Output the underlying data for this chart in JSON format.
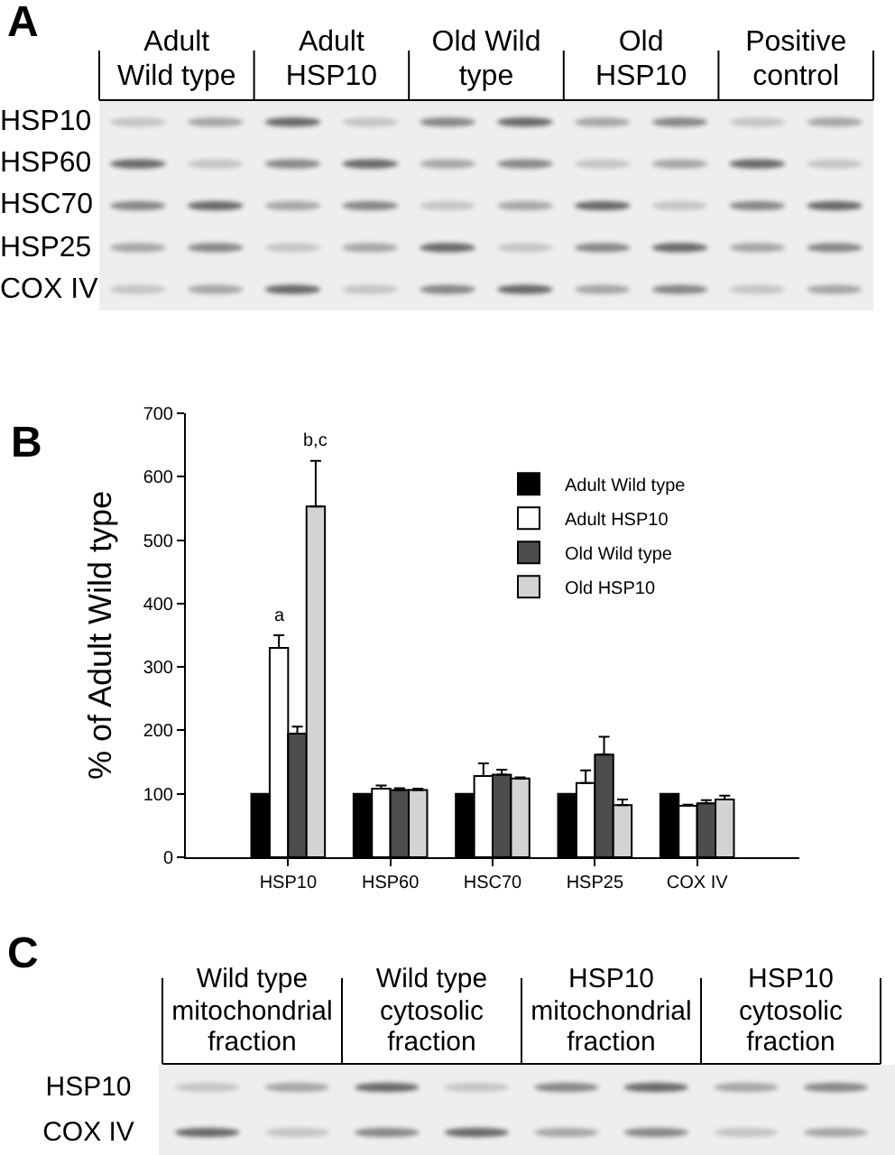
{
  "chart_data": [
    {
      "type": "other",
      "title": "A",
      "categories": [
        "Adult Wild type",
        "Adult HSP10",
        "Old Wild type",
        "Old HSP10",
        "Positive control"
      ],
      "y_categories": [
        "HSP10",
        "HSP60",
        "HSC70",
        "HSP25",
        "COX IV"
      ]
    },
    {
      "type": "bar",
      "title": "B",
      "ylabel": "% of Adult Wild type",
      "categories": [
        "HSP10",
        "HSP60",
        "HSC70",
        "HSP25",
        "COX IV"
      ],
      "series": [
        {
          "name": "Adult Wild type",
          "color": "#000000",
          "values": [
            100,
            100,
            100,
            100,
            100
          ]
        },
        {
          "name": "Adult HSP10",
          "color": "#ffffff",
          "values": [
            330,
            108,
            128,
            117,
            81
          ],
          "errors": [
            [
              330,
              350
            ],
            [
              108,
              113
            ],
            [
              128,
              148
            ],
            [
              117,
              137
            ],
            [
              81,
              83
            ]
          ],
          "value_labels": [
            "a",
            null,
            null,
            null,
            null
          ]
        },
        {
          "name": "Old Wild type",
          "color": "#4d4d4d",
          "values": [
            195,
            106,
            130,
            162,
            85
          ],
          "errors": [
            [
              195,
              206
            ],
            [
              106,
              109
            ],
            [
              130,
              138
            ],
            [
              162,
              190
            ],
            [
              85,
              90
            ]
          ]
        },
        {
          "name": "Old HSP10",
          "color": "#d3d3d3",
          "values": [
            553,
            106,
            124,
            82,
            91
          ],
          "errors": [
            [
              553,
              625
            ],
            [
              106,
              108
            ],
            [
              124,
              126
            ],
            [
              82,
              91
            ],
            [
              91,
              97
            ]
          ],
          "value_labels": [
            "b,c",
            null,
            null,
            null,
            null
          ]
        }
      ],
      "ylim": [
        0,
        700
      ],
      "yticks": [
        0,
        100,
        200,
        300,
        400,
        500,
        600,
        700
      ],
      "legend": "top right"
    },
    {
      "type": "other",
      "title": "C",
      "categories": [
        "Wild type mitochondrial fraction",
        "Wild type cytosolic fraction",
        "HSP10 mitochondrial fraction",
        "HSP10 cytosolic fraction"
      ],
      "y_categories": [
        "HSP10",
        "COX IV"
      ]
    }
  ]
}
